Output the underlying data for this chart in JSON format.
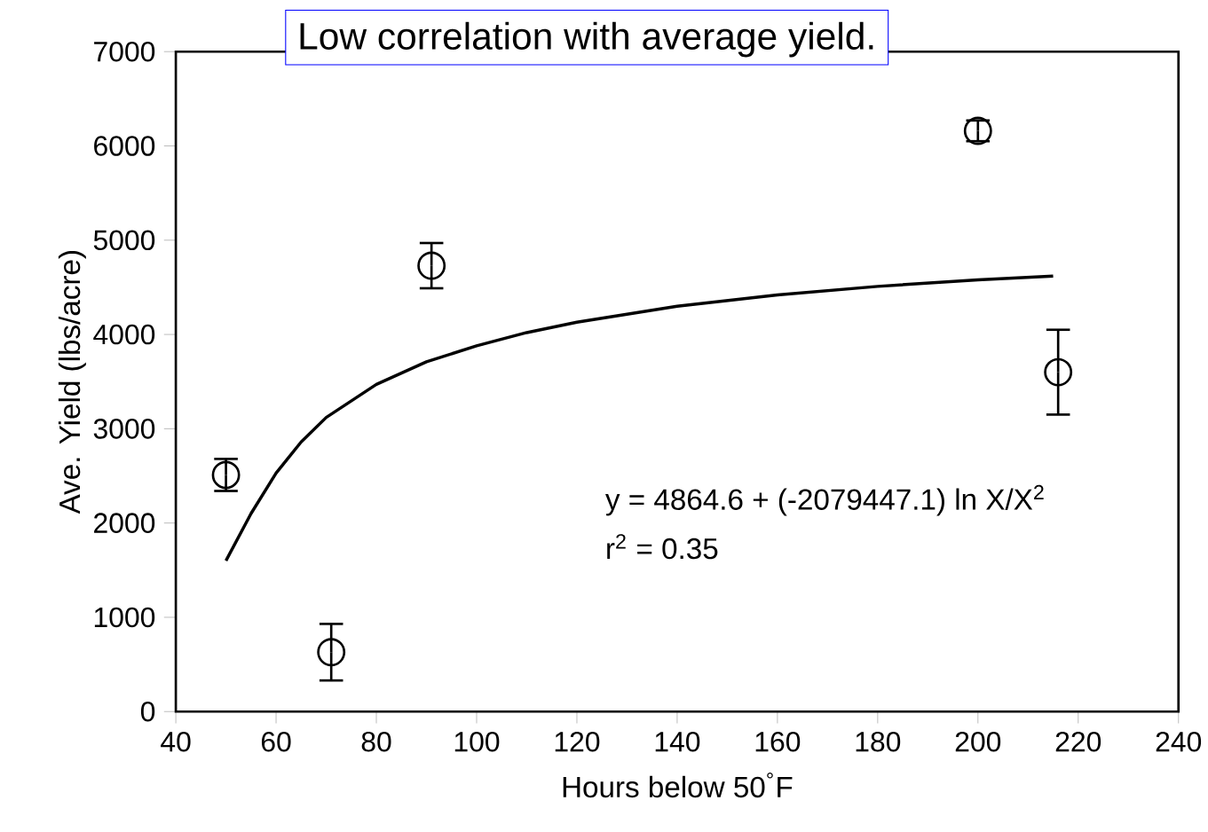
{
  "chart_data": {
    "type": "scatter",
    "title": "Low correlation with average yield.",
    "xlabel": "Hours below 50$^{°}$F",
    "ylabel": "Ave. Yield (lbs/acre)",
    "xlim": [
      40,
      240
    ],
    "xticks": [
      40,
      60,
      80,
      100,
      120,
      140,
      160,
      180,
      200,
      220,
      240
    ],
    "ylim": [
      0,
      7000
    ],
    "yticks": [
      0,
      1000,
      2000,
      3000,
      4000,
      5000,
      6000,
      7000
    ],
    "grid": false,
    "series": [
      {
        "color": "#000000",
        "marker": "circle",
        "x": [
          50,
          71,
          91,
          200,
          216
        ],
        "values": [
          2510,
          630,
          4730,
          6160,
          3600
        ],
        "errors": [
          170,
          300,
          240,
          110,
          450
        ]
      },
      {
        "type": "line",
        "color": "#000000",
        "marker": "none",
        "line_style": "solid",
        "x": [
          50,
          55,
          60,
          65,
          70,
          80,
          90,
          100,
          110,
          120,
          140,
          160,
          180,
          200,
          215
        ],
        "values": [
          1600,
          2100,
          2530,
          2860,
          3120,
          3470,
          3710,
          3880,
          4020,
          4130,
          4300,
          4420,
          4510,
          4580,
          4620
        ]
      }
    ],
    "annotations": [
      "y = 4864.6 + (-2079447.1) ln X/X$^{2}$",
      "r$^{2}$ = 0.35"
    ]
  }
}
